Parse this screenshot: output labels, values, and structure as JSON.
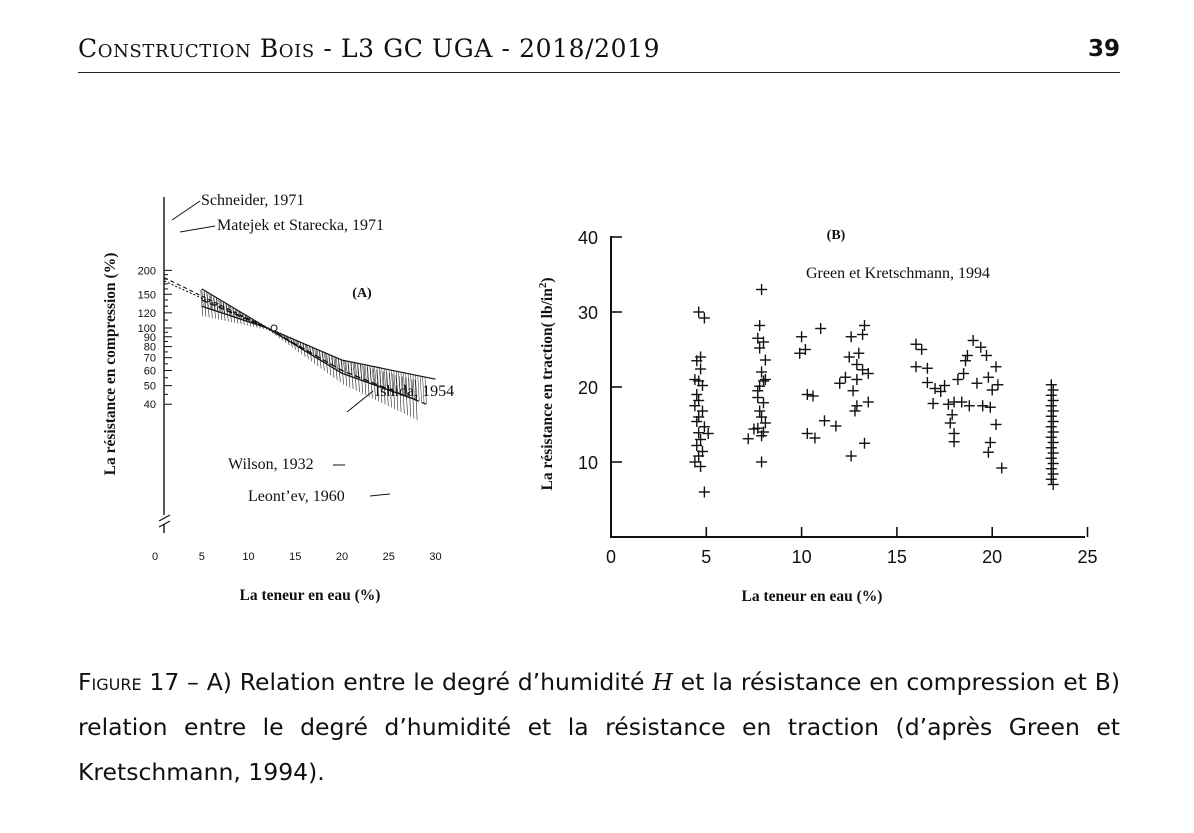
{
  "header": {
    "title": "Construction Bois - L3 GC UGA - 2018/2019",
    "page_number": "39"
  },
  "chart_data": [
    {
      "type": "line",
      "panel_label": "(A)",
      "xlabel": "La teneur en eau (%)",
      "ylabel": "La résistance en compression (%)",
      "scale_y": "log",
      "xlim": [
        0,
        30
      ],
      "ylim": [
        40,
        200
      ],
      "x_ticks": [
        "0",
        "5",
        "10",
        "15",
        "20",
        "25",
        "30"
      ],
      "y_ticks": [
        "40",
        "50",
        "60",
        "70",
        "80",
        "90",
        "100",
        "120",
        "150",
        "200"
      ],
      "annotations": [
        "Schneider, 1971",
        "Matejek et Starecka, 1971",
        "Ishida, 1954",
        "Wilson, 1932",
        "Leont’ev, 1960"
      ],
      "series": [
        {
          "name": "Schneider, 1971",
          "x": [
            1,
            12
          ],
          "y": [
            183,
            100
          ]
        },
        {
          "name": "Matejek et Starecka, 1971",
          "x": [
            1,
            12
          ],
          "y": [
            176,
            100
          ]
        },
        {
          "name": "Ishida, 1954",
          "x": [
            5,
            12,
            20,
            30
          ],
          "y": [
            160,
            100,
            68,
            54
          ]
        },
        {
          "name": "Wilson, 1932",
          "x": [
            5,
            12,
            20,
            29
          ],
          "y": [
            140,
            100,
            60,
            40
          ]
        },
        {
          "name": "Leont’ev, 1960",
          "x": [
            5,
            12,
            20,
            28
          ],
          "y": [
            130,
            100,
            58,
            42
          ]
        }
      ]
    },
    {
      "type": "scatter",
      "panel_label": "(B)",
      "annotation": "Green et Kretschmann, 1994",
      "xlabel": "La teneur en eau (%)",
      "ylabel": "La résistance en traction( lb/in",
      "ylabel_sup": "2",
      "ylabel_close": ")",
      "xlim": [
        0,
        25
      ],
      "ylim": [
        0,
        40
      ],
      "x_ticks": [
        "0",
        "5",
        "10",
        "15",
        "20",
        "25"
      ],
      "y_ticks": [
        "10",
        "20",
        "30",
        "40"
      ],
      "series": [
        {
          "marker": "+",
          "points": [
            [
              4.6,
              30
            ],
            [
              4.9,
              29.2
            ],
            [
              4.5,
              23.5
            ],
            [
              4.7,
              22.4
            ],
            [
              4.4,
              21
            ],
            [
              4.8,
              20.2
            ],
            [
              4.5,
              19
            ],
            [
              4.6,
              18.2
            ],
            [
              4.4,
              17.5
            ],
            [
              4.8,
              16.8
            ],
            [
              4.6,
              16
            ],
            [
              4.5,
              15.4
            ],
            [
              4.9,
              14.7
            ],
            [
              4.6,
              13.9
            ],
            [
              5.1,
              13.8
            ],
            [
              4.7,
              13
            ],
            [
              4.5,
              12.2
            ],
            [
              4.8,
              11.4
            ],
            [
              4.6,
              10.8
            ],
            [
              4.4,
              10
            ],
            [
              4.7,
              9.4
            ],
            [
              4.9,
              6
            ],
            [
              4.6,
              20.8
            ],
            [
              4.7,
              24
            ],
            [
              7.9,
              33
            ],
            [
              7.8,
              28.2
            ],
            [
              7.7,
              26.5
            ],
            [
              8.0,
              26
            ],
            [
              7.8,
              25.2
            ],
            [
              8.1,
              23.6
            ],
            [
              7.9,
              22
            ],
            [
              8.0,
              20.8
            ],
            [
              7.8,
              20.1
            ],
            [
              7.7,
              18.6
            ],
            [
              8.0,
              17.9
            ],
            [
              7.8,
              16.8
            ],
            [
              7.9,
              16
            ],
            [
              8.1,
              15.2
            ],
            [
              7.7,
              14.5
            ],
            [
              8.0,
              14
            ],
            [
              7.9,
              13.5
            ],
            [
              7.5,
              14.4
            ],
            [
              7.2,
              13.1
            ],
            [
              7.9,
              10
            ],
            [
              8.1,
              21
            ],
            [
              7.7,
              19.5
            ],
            [
              10.0,
              26.7
            ],
            [
              10.2,
              25
            ],
            [
              9.9,
              24.5
            ],
            [
              11.0,
              27.8
            ],
            [
              10.3,
              19
            ],
            [
              10.6,
              18.8
            ],
            [
              10.3,
              13.8
            ],
            [
              10.7,
              13.2
            ],
            [
              11.2,
              15.5
            ],
            [
              11.8,
              14.8
            ],
            [
              12.0,
              20.5
            ],
            [
              12.3,
              21.3
            ],
            [
              12.6,
              26.7
            ],
            [
              13.2,
              27
            ],
            [
              12.5,
              24
            ],
            [
              13.0,
              24.5
            ],
            [
              13.2,
              22.3
            ],
            [
              12.9,
              21
            ],
            [
              13.5,
              21.8
            ],
            [
              12.7,
              19.5
            ],
            [
              12.9,
              17.5
            ],
            [
              13.5,
              18
            ],
            [
              12.8,
              16.8
            ],
            [
              13.3,
              12.5
            ],
            [
              12.6,
              10.8
            ],
            [
              13.3,
              28.2
            ],
            [
              12.9,
              23
            ],
            [
              16.0,
              25.7
            ],
            [
              16.3,
              25
            ],
            [
              16.0,
              22.7
            ],
            [
              16.6,
              22.5
            ],
            [
              16.6,
              20.6
            ],
            [
              17.0,
              19.8
            ],
            [
              17.3,
              19.4
            ],
            [
              17.5,
              20.2
            ],
            [
              16.9,
              17.8
            ],
            [
              17.7,
              17.7
            ],
            [
              18.0,
              18
            ],
            [
              18.4,
              18
            ],
            [
              18.2,
              21
            ],
            [
              18.5,
              21.8
            ],
            [
              18.6,
              23.5
            ],
            [
              18.7,
              24.2
            ],
            [
              19.0,
              26.2
            ],
            [
              19.4,
              25.3
            ],
            [
              19.7,
              24.2
            ],
            [
              19.8,
              21.3
            ],
            [
              20.2,
              22.7
            ],
            [
              20.0,
              19.6
            ],
            [
              20.3,
              20.3
            ],
            [
              19.5,
              17.5
            ],
            [
              19.9,
              17.3
            ],
            [
              20.2,
              15
            ],
            [
              17.8,
              15.2
            ],
            [
              18.0,
              13.8
            ],
            [
              18.0,
              12.7
            ],
            [
              19.9,
              12.6
            ],
            [
              19.8,
              11.3
            ],
            [
              20.5,
              9.2
            ],
            [
              18.8,
              17.5
            ],
            [
              19.2,
              20.5
            ],
            [
              17.9,
              16.3
            ],
            [
              23.1,
              20.3
            ],
            [
              23.2,
              19.6
            ],
            [
              23.1,
              18.9
            ],
            [
              23.2,
              18.2
            ],
            [
              23.1,
              17.5
            ],
            [
              23.2,
              16.8
            ],
            [
              23.1,
              16.1
            ],
            [
              23.2,
              15.4
            ],
            [
              23.1,
              14.7
            ],
            [
              23.2,
              14.0
            ],
            [
              23.1,
              13.3
            ],
            [
              23.2,
              12.6
            ],
            [
              23.1,
              11.9
            ],
            [
              23.2,
              11.2
            ],
            [
              23.1,
              10.5
            ],
            [
              23.2,
              9.8
            ],
            [
              23.1,
              9.1
            ],
            [
              23.2,
              8.4
            ],
            [
              23.1,
              7.7
            ],
            [
              23.2,
              7.0
            ]
          ]
        }
      ]
    }
  ],
  "caption": {
    "label": "Figure 17",
    "text_before_var": " – A) Relation entre le degré d’humidité ",
    "var": "H",
    "text_after_var": " et la résistance en compression et B) relation entre le degré d’humidité et la résistance en traction (d’après Green et Kretschmann, 1994)."
  }
}
